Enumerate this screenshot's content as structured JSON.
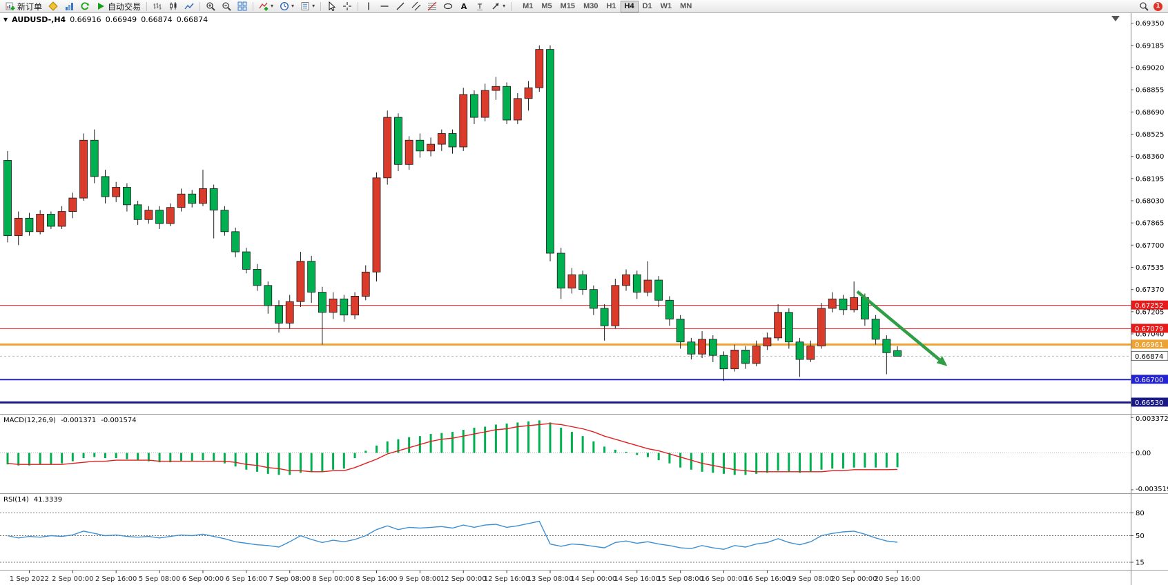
{
  "toolbar": {
    "new_order_label": "新订单",
    "autotrade_label": "自动交易",
    "timeframes": [
      "M1",
      "M5",
      "M15",
      "M30",
      "H1",
      "H4",
      "D1",
      "W1",
      "MN"
    ],
    "active_timeframe": "H4",
    "notification_count": "1"
  },
  "chart": {
    "title": {
      "symbol": "AUDUSD-,H4",
      "open": "0.66916",
      "high": "0.66949",
      "low": "0.66874",
      "close": "0.66874"
    }
  },
  "chart_data": {
    "type": "candlestick",
    "symbol": "AUDUSD-",
    "timeframe": "H4",
    "ylim": [
      0.66445,
      0.69425
    ],
    "price_axis_labels": [
      "0.69350",
      "0.69185",
      "0.69020",
      "0.68855",
      "0.68690",
      "0.68525",
      "0.68360",
      "0.68195",
      "0.68030",
      "0.67865",
      "0.67700",
      "0.67535",
      "0.67370",
      "0.67205",
      "0.67040"
    ],
    "time_axis_labels": [
      {
        "i": 2,
        "t": "1 Sep 2022"
      },
      {
        "i": 6,
        "t": "2 Sep 00:00"
      },
      {
        "i": 10,
        "t": "2 Sep 16:00"
      },
      {
        "i": 14,
        "t": "5 Sep 08:00"
      },
      {
        "i": 18,
        "t": "6 Sep 00:00"
      },
      {
        "i": 22,
        "t": "6 Sep 16:00"
      },
      {
        "i": 26,
        "t": "7 Sep 08:00"
      },
      {
        "i": 30,
        "t": "8 Sep 00:00"
      },
      {
        "i": 34,
        "t": "8 Sep 16:00"
      },
      {
        "i": 38,
        "t": "9 Sep 08:00"
      },
      {
        "i": 42,
        "t": "12 Sep 00:00"
      },
      {
        "i": 46,
        "t": "12 Sep 16:00"
      },
      {
        "i": 50,
        "t": "13 Sep 08:00"
      },
      {
        "i": 54,
        "t": "14 Sep 00:00"
      },
      {
        "i": 58,
        "t": "14 Sep 16:00"
      },
      {
        "i": 62,
        "t": "15 Sep 08:00"
      },
      {
        "i": 66,
        "t": "16 Sep 00:00"
      },
      {
        "i": 70,
        "t": "16 Sep 16:00"
      },
      {
        "i": 74,
        "t": "19 Sep 08:00"
      },
      {
        "i": 78,
        "t": "20 Sep 00:00"
      },
      {
        "i": 82,
        "t": "20 Sep 16:00"
      }
    ],
    "candles": [
      [
        0.6833,
        0.684,
        0.6772,
        0.6777
      ],
      [
        0.6777,
        0.6795,
        0.677,
        0.679
      ],
      [
        0.679,
        0.6794,
        0.6777,
        0.678
      ],
      [
        0.678,
        0.6796,
        0.6778,
        0.6793
      ],
      [
        0.6793,
        0.6795,
        0.6782,
        0.6784
      ],
      [
        0.6784,
        0.6799,
        0.6782,
        0.6795
      ],
      [
        0.6795,
        0.6809,
        0.679,
        0.6805
      ],
      [
        0.6805,
        0.6853,
        0.6803,
        0.6848
      ],
      [
        0.6848,
        0.6856,
        0.6816,
        0.6821
      ],
      [
        0.6821,
        0.6826,
        0.6801,
        0.6806
      ],
      [
        0.6806,
        0.6817,
        0.6802,
        0.6813
      ],
      [
        0.6813,
        0.6816,
        0.6795,
        0.68
      ],
      [
        0.68,
        0.6803,
        0.6785,
        0.6789
      ],
      [
        0.6789,
        0.6799,
        0.6786,
        0.6796
      ],
      [
        0.6796,
        0.6799,
        0.6782,
        0.6786
      ],
      [
        0.6786,
        0.6801,
        0.6784,
        0.6798
      ],
      [
        0.6798,
        0.6812,
        0.6795,
        0.6808
      ],
      [
        0.6808,
        0.6811,
        0.6798,
        0.6801
      ],
      [
        0.6801,
        0.6826,
        0.6799,
        0.6812
      ],
      [
        0.6812,
        0.6815,
        0.6775,
        0.6796
      ],
      [
        0.6796,
        0.6799,
        0.6777,
        0.678
      ],
      [
        0.678,
        0.6783,
        0.6761,
        0.6765
      ],
      [
        0.6765,
        0.6768,
        0.6749,
        0.6752
      ],
      [
        0.6752,
        0.6756,
        0.6736,
        0.674
      ],
      [
        0.674,
        0.6743,
        0.6719,
        0.6725
      ],
      [
        0.6725,
        0.6729,
        0.6705,
        0.6712
      ],
      [
        0.6712,
        0.6733,
        0.6708,
        0.6728
      ],
      [
        0.6728,
        0.6765,
        0.6724,
        0.6758
      ],
      [
        0.6758,
        0.6762,
        0.6727,
        0.6735
      ],
      [
        0.6735,
        0.6739,
        0.6696,
        0.672
      ],
      [
        0.672,
        0.6735,
        0.6715,
        0.673
      ],
      [
        0.673,
        0.6733,
        0.6713,
        0.6718
      ],
      [
        0.6718,
        0.6735,
        0.6715,
        0.6732
      ],
      [
        0.6732,
        0.6755,
        0.6729,
        0.675
      ],
      [
        0.675,
        0.6824,
        0.6743,
        0.682
      ],
      [
        0.682,
        0.687,
        0.6815,
        0.6865
      ],
      [
        0.6865,
        0.6868,
        0.6825,
        0.683
      ],
      [
        0.683,
        0.6851,
        0.6826,
        0.6848
      ],
      [
        0.6848,
        0.6853,
        0.6835,
        0.684
      ],
      [
        0.684,
        0.685,
        0.6836,
        0.6845
      ],
      [
        0.6845,
        0.6856,
        0.684,
        0.6853
      ],
      [
        0.6853,
        0.6856,
        0.6838,
        0.6843
      ],
      [
        0.6843,
        0.6887,
        0.684,
        0.6882
      ],
      [
        0.6882,
        0.6885,
        0.686,
        0.6865
      ],
      [
        0.6865,
        0.689,
        0.6862,
        0.6885
      ],
      [
        0.6885,
        0.6895,
        0.6878,
        0.6888
      ],
      [
        0.6888,
        0.6891,
        0.686,
        0.6863
      ],
      [
        0.6863,
        0.6883,
        0.686,
        0.6879
      ],
      [
        0.6879,
        0.6892,
        0.687,
        0.6887
      ],
      [
        0.6887,
        0.69185,
        0.6884,
        0.69155
      ],
      [
        0.69155,
        0.69185,
        0.6758,
        0.6764
      ],
      [
        0.6764,
        0.6768,
        0.673,
        0.6738
      ],
      [
        0.6738,
        0.6753,
        0.6734,
        0.6748
      ],
      [
        0.6748,
        0.6751,
        0.6733,
        0.6737
      ],
      [
        0.6737,
        0.674,
        0.6718,
        0.6723
      ],
      [
        0.6723,
        0.6726,
        0.6699,
        0.671
      ],
      [
        0.671,
        0.6745,
        0.6708,
        0.674
      ],
      [
        0.674,
        0.6752,
        0.6736,
        0.6748
      ],
      [
        0.6748,
        0.6751,
        0.673,
        0.6735
      ],
      [
        0.6735,
        0.6758,
        0.6732,
        0.6744
      ],
      [
        0.6744,
        0.6747,
        0.6724,
        0.6729
      ],
      [
        0.6729,
        0.6732,
        0.671,
        0.6715
      ],
      [
        0.6715,
        0.6718,
        0.6693,
        0.6698
      ],
      [
        0.6698,
        0.6701,
        0.6685,
        0.6689
      ],
      [
        0.6689,
        0.6706,
        0.6686,
        0.67
      ],
      [
        0.67,
        0.6703,
        0.6683,
        0.6688
      ],
      [
        0.6688,
        0.6691,
        0.6669,
        0.6678
      ],
      [
        0.6678,
        0.6696,
        0.6676,
        0.6692
      ],
      [
        0.6692,
        0.6695,
        0.6678,
        0.6682
      ],
      [
        0.6682,
        0.6699,
        0.668,
        0.6695
      ],
      [
        0.6695,
        0.6705,
        0.6692,
        0.6701
      ],
      [
        0.6701,
        0.6726,
        0.6699,
        0.672
      ],
      [
        0.672,
        0.6723,
        0.6693,
        0.6698
      ],
      [
        0.6698,
        0.6701,
        0.6672,
        0.6685
      ],
      [
        0.6685,
        0.6699,
        0.6683,
        0.6695
      ],
      [
        0.6695,
        0.6727,
        0.6693,
        0.6723
      ],
      [
        0.6723,
        0.6735,
        0.672,
        0.673
      ],
      [
        0.673,
        0.6733,
        0.6718,
        0.6722
      ],
      [
        0.6722,
        0.6743,
        0.672,
        0.6731
      ],
      [
        0.6731,
        0.6734,
        0.671,
        0.6715
      ],
      [
        0.6715,
        0.6718,
        0.6696,
        0.67
      ],
      [
        0.67,
        0.6703,
        0.6674,
        0.669
      ],
      [
        0.66916,
        0.66949,
        0.66874,
        0.66874
      ]
    ],
    "hlines": [
      {
        "price": 0.67252,
        "label": "0.67252",
        "color": "#e81b1b",
        "width": 1
      },
      {
        "price": 0.67079,
        "label": "0.67079",
        "color": "#e81b1b",
        "width": 1
      },
      {
        "price": 0.66961,
        "label": "0.66961",
        "color": "#eda233",
        "width": 3
      },
      {
        "price": 0.667,
        "label": "0.66700",
        "color": "#2323d2",
        "width": 2
      },
      {
        "price": 0.6653,
        "label": "0.66530",
        "color": "#191985",
        "width": 3
      }
    ],
    "current_price": {
      "label": "0.66874",
      "price": 0.66874
    },
    "arrow": {
      "from": {
        "bar": 78.3,
        "price": 0.67355
      },
      "to": {
        "bar": 86.6,
        "price": 0.668
      },
      "color": "#2f9e44"
    },
    "colors": {
      "up": "#da3b2b",
      "down": "#00b050",
      "wick": "#1a1a1a"
    }
  },
  "macd": {
    "name": "MACD(12,26,9)",
    "value1": "-0.001371",
    "value2": "-0.001574",
    "axis_labels": [
      "0.003372",
      "0.00",
      "-0.003519"
    ],
    "range": [
      -0.00385,
      0.00365
    ],
    "colors": {
      "histogram": "#00b050",
      "signal": "#e01f1f"
    },
    "histogram": [
      -0.0011,
      -0.0012,
      -0.0012,
      -0.0011,
      -0.0011,
      -0.001,
      -0.0008,
      -0.0005,
      -0.0004,
      -0.0005,
      -0.0005,
      -0.0006,
      -0.0007,
      -0.0008,
      -0.0009,
      -0.0009,
      -0.0008,
      -0.0008,
      -0.0007,
      -0.0008,
      -0.001,
      -0.0013,
      -0.0016,
      -0.0018,
      -0.002,
      -0.0021,
      -0.0021,
      -0.0019,
      -0.0018,
      -0.0018,
      -0.0016,
      -0.0015,
      -0.0005,
      0.0002,
      0.0007,
      0.0011,
      0.0013,
      0.0015,
      0.0016,
      0.0018,
      0.0019,
      0.002,
      0.0022,
      0.0024,
      0.0025,
      0.0027,
      0.0028,
      0.0029,
      0.003,
      0.0031,
      0.0029,
      0.0024,
      0.002,
      0.0016,
      0.0011,
      0.0006,
      0.0003,
      0.0001,
      -0.0002,
      -0.0004,
      -0.0007,
      -0.001,
      -0.0014,
      -0.0016,
      -0.0018,
      -0.0019,
      -0.002,
      -0.0021,
      -0.0021,
      -0.002,
      -0.0019,
      -0.0017,
      -0.0018,
      -0.0019,
      -0.0018,
      -0.0016,
      -0.0015,
      -0.0015,
      -0.0014,
      -0.0014,
      -0.0014,
      -0.0014,
      -0.001371
    ],
    "signal": [
      -0.001,
      -0.0011,
      -0.0011,
      -0.0011,
      -0.0011,
      -0.0011,
      -0.001,
      -0.0009,
      -0.0008,
      -0.0008,
      -0.0007,
      -0.0007,
      -0.0007,
      -0.0007,
      -0.0008,
      -0.0008,
      -0.0008,
      -0.0008,
      -0.0008,
      -0.0008,
      -0.0008,
      -0.0009,
      -0.0011,
      -0.0012,
      -0.0014,
      -0.0015,
      -0.0017,
      -0.0017,
      -0.0018,
      -0.0018,
      -0.0017,
      -0.0017,
      -0.0014,
      -0.001,
      -0.0006,
      -0.0001,
      0.0002,
      0.0005,
      0.0008,
      0.0011,
      0.0013,
      0.0014,
      0.0016,
      0.0018,
      0.002,
      0.0022,
      0.0023,
      0.0025,
      0.0026,
      0.0027,
      0.0028,
      0.0027,
      0.0025,
      0.0023,
      0.002,
      0.0016,
      0.0013,
      0.001,
      0.0007,
      0.0004,
      0.0002,
      -0.0001,
      -0.0004,
      -0.0007,
      -0.001,
      -0.0012,
      -0.0014,
      -0.0016,
      -0.0017,
      -0.0018,
      -0.0018,
      -0.0018,
      -0.0018,
      -0.0018,
      -0.0018,
      -0.0018,
      -0.0017,
      -0.0017,
      -0.0016,
      -0.0016,
      -0.0016,
      -0.0016,
      -0.001574
    ]
  },
  "rsi": {
    "name": "RSI(14)",
    "value": "41.3339",
    "levels": [
      80,
      50,
      15
    ],
    "range": [
      5,
      105
    ],
    "color": "#3d8fd1",
    "values": [
      50,
      47,
      49,
      48,
      50,
      49,
      51,
      56,
      53,
      50,
      51,
      49,
      48,
      49,
      47,
      49,
      51,
      50,
      52,
      49,
      46,
      42,
      40,
      38,
      37,
      35,
      42,
      50,
      45,
      41,
      44,
      42,
      45,
      50,
      58,
      63,
      58,
      61,
      60,
      61,
      62,
      60,
      64,
      61,
      64,
      65,
      61,
      63,
      66,
      69,
      39,
      36,
      39,
      38,
      36,
      34,
      41,
      43,
      40,
      42,
      39,
      37,
      34,
      33,
      37,
      34,
      32,
      37,
      35,
      39,
      41,
      46,
      41,
      38,
      42,
      50,
      53,
      55,
      56,
      52,
      47,
      43,
      41.33
    ]
  }
}
